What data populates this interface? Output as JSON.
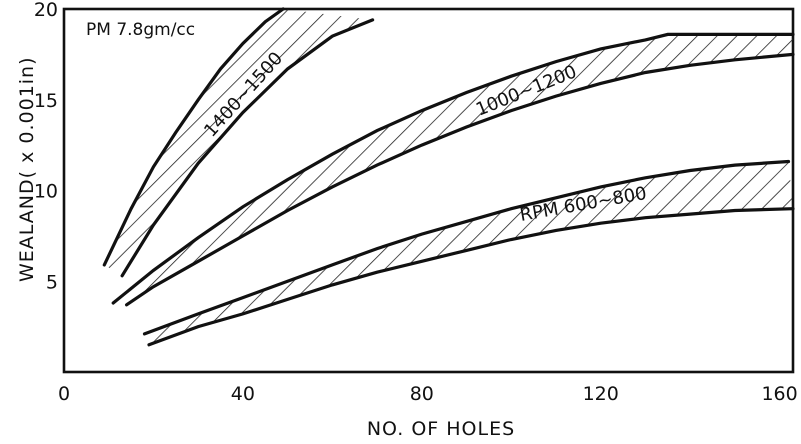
{
  "chart_data": {
    "type": "area",
    "title": "",
    "xlabel": "NO. OF HOLES",
    "ylabel": "WEALAND( x 0.001in)",
    "xlim": [
      0,
      163
    ],
    "ylim": [
      0,
      20
    ],
    "x_ticks": [
      {
        "value": 0,
        "label": "0"
      },
      {
        "value": 40,
        "label": "40"
      },
      {
        "value": 80,
        "label": "80"
      },
      {
        "value": 120,
        "label": "120"
      },
      {
        "value": 160,
        "label": "160"
      }
    ],
    "y_ticks": [
      {
        "value": 5,
        "label": "5"
      },
      {
        "value": 10,
        "label": "10"
      },
      {
        "value": 15,
        "label": "15"
      },
      {
        "value": 20,
        "label": "20"
      }
    ],
    "grid": false,
    "legend": "none",
    "annotation": "PM 7.8gm/cc",
    "bands": [
      {
        "label": "1400~1500",
        "fill": "hatched",
        "upper": [
          [
            9,
            5.9
          ],
          [
            15,
            9.0
          ],
          [
            20,
            11.3
          ],
          [
            25,
            13.2
          ],
          [
            30,
            15.0
          ],
          [
            35,
            16.7
          ],
          [
            40,
            18.1
          ],
          [
            45,
            19.3
          ],
          [
            49,
            20.0
          ]
        ],
        "lower": [
          [
            13,
            5.3
          ],
          [
            20,
            8.1
          ],
          [
            30,
            11.5
          ],
          [
            40,
            14.3
          ],
          [
            50,
            16.7
          ],
          [
            60,
            18.5
          ],
          [
            69,
            19.4
          ]
        ]
      },
      {
        "label": "1000~1200",
        "fill": "hatched",
        "upper": [
          [
            11,
            3.8
          ],
          [
            20,
            5.6
          ],
          [
            30,
            7.4
          ],
          [
            40,
            9.1
          ],
          [
            50,
            10.6
          ],
          [
            60,
            12.0
          ],
          [
            70,
            13.3
          ],
          [
            80,
            14.4
          ],
          [
            90,
            15.4
          ],
          [
            100,
            16.3
          ],
          [
            110,
            17.1
          ],
          [
            120,
            17.8
          ],
          [
            130,
            18.3
          ],
          [
            135,
            18.6
          ],
          [
            145,
            18.6
          ],
          [
            163,
            18.6
          ]
        ],
        "lower": [
          [
            14,
            3.7
          ],
          [
            20,
            4.7
          ],
          [
            30,
            6.1
          ],
          [
            40,
            7.5
          ],
          [
            50,
            8.9
          ],
          [
            60,
            10.2
          ],
          [
            70,
            11.4
          ],
          [
            80,
            12.5
          ],
          [
            90,
            13.5
          ],
          [
            100,
            14.4
          ],
          [
            110,
            15.2
          ],
          [
            120,
            15.9
          ],
          [
            130,
            16.5
          ],
          [
            140,
            16.9
          ],
          [
            150,
            17.2
          ],
          [
            163,
            17.5
          ]
        ]
      },
      {
        "label": "RPM 600~800",
        "fill": "hatched",
        "upper": [
          [
            18,
            2.1
          ],
          [
            30,
            3.2
          ],
          [
            40,
            4.1
          ],
          [
            50,
            5.0
          ],
          [
            60,
            5.9
          ],
          [
            70,
            6.8
          ],
          [
            80,
            7.6
          ],
          [
            90,
            8.3
          ],
          [
            100,
            9.0
          ],
          [
            110,
            9.6
          ],
          [
            120,
            10.2
          ],
          [
            130,
            10.7
          ],
          [
            140,
            11.1
          ],
          [
            150,
            11.4
          ],
          [
            162,
            11.6
          ]
        ],
        "lower": [
          [
            19,
            1.5
          ],
          [
            30,
            2.5
          ],
          [
            40,
            3.2
          ],
          [
            50,
            4.0
          ],
          [
            60,
            4.8
          ],
          [
            70,
            5.5
          ],
          [
            80,
            6.1
          ],
          [
            90,
            6.7
          ],
          [
            100,
            7.3
          ],
          [
            110,
            7.8
          ],
          [
            120,
            8.2
          ],
          [
            130,
            8.5
          ],
          [
            140,
            8.7
          ],
          [
            150,
            8.9
          ],
          [
            163,
            9.0
          ]
        ]
      }
    ]
  }
}
